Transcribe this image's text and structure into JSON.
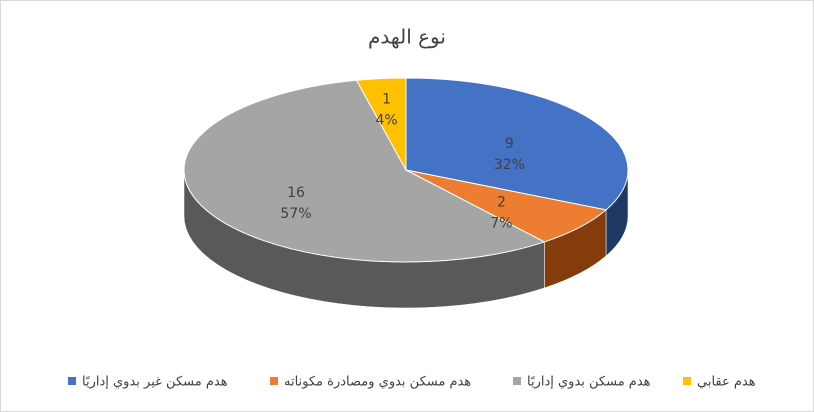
{
  "chart_data": {
    "type": "pie3d",
    "title": "نوع الهدم",
    "categories": [
      "هدم مسكن غير بدوي إداريًا",
      "هدم مسكن بدوي ومصادرة مكوناته",
      "هدم مسكن بدوي إداريًا",
      "هدم عقابي"
    ],
    "values": [
      9,
      2,
      16,
      1
    ],
    "percent_labels": [
      "32%",
      "7%",
      "57%",
      "4%"
    ],
    "colors": [
      "#4472c4",
      "#ed7d31",
      "#a5a5a5",
      "#ffc000"
    ],
    "side_colors": [
      "#203864",
      "#843c0c",
      "#595959",
      "#7f6000"
    ],
    "legend": "bottom"
  }
}
